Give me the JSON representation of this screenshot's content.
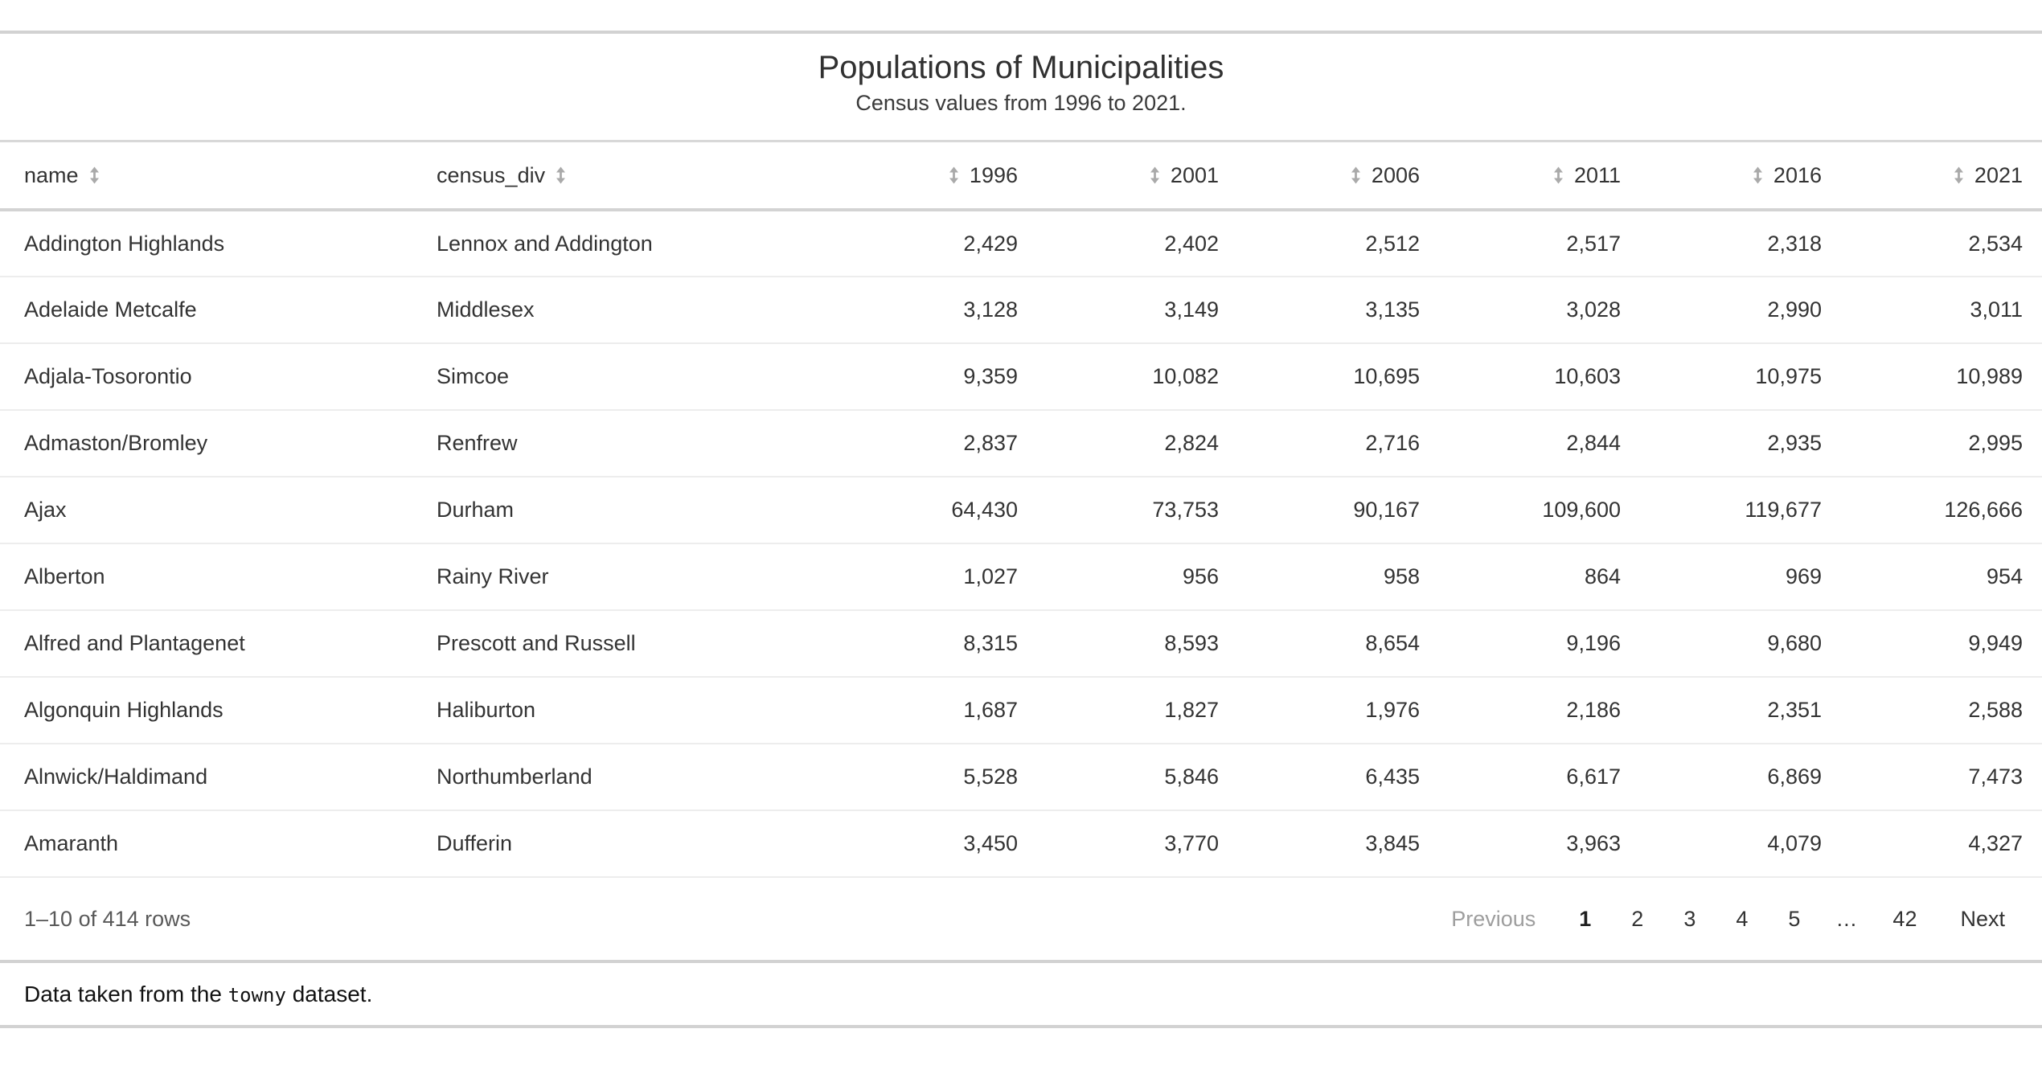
{
  "header": {
    "title": "Populations of Municipalities",
    "subtitle": "Census values from 1996 to 2021."
  },
  "table": {
    "columns": [
      {
        "key": "name",
        "label": "name",
        "align": "left"
      },
      {
        "key": "census_div",
        "label": "census_div",
        "align": "left"
      },
      {
        "key": "1996",
        "label": "1996",
        "align": "right"
      },
      {
        "key": "2001",
        "label": "2001",
        "align": "right"
      },
      {
        "key": "2006",
        "label": "2006",
        "align": "right"
      },
      {
        "key": "2011",
        "label": "2011",
        "align": "right"
      },
      {
        "key": "2016",
        "label": "2016",
        "align": "right"
      },
      {
        "key": "2021",
        "label": "2021",
        "align": "right"
      }
    ],
    "rows": [
      {
        "name": "Addington Highlands",
        "census_div": "Lennox and Addington",
        "1996": "2,429",
        "2001": "2,402",
        "2006": "2,512",
        "2011": "2,517",
        "2016": "2,318",
        "2021": "2,534"
      },
      {
        "name": "Adelaide Metcalfe",
        "census_div": "Middlesex",
        "1996": "3,128",
        "2001": "3,149",
        "2006": "3,135",
        "2011": "3,028",
        "2016": "2,990",
        "2021": "3,011"
      },
      {
        "name": "Adjala-Tosorontio",
        "census_div": "Simcoe",
        "1996": "9,359",
        "2001": "10,082",
        "2006": "10,695",
        "2011": "10,603",
        "2016": "10,975",
        "2021": "10,989"
      },
      {
        "name": "Admaston/Bromley",
        "census_div": "Renfrew",
        "1996": "2,837",
        "2001": "2,824",
        "2006": "2,716",
        "2011": "2,844",
        "2016": "2,935",
        "2021": "2,995"
      },
      {
        "name": "Ajax",
        "census_div": "Durham",
        "1996": "64,430",
        "2001": "73,753",
        "2006": "90,167",
        "2011": "109,600",
        "2016": "119,677",
        "2021": "126,666"
      },
      {
        "name": "Alberton",
        "census_div": "Rainy River",
        "1996": "1,027",
        "2001": "956",
        "2006": "958",
        "2011": "864",
        "2016": "969",
        "2021": "954"
      },
      {
        "name": "Alfred and Plantagenet",
        "census_div": "Prescott and Russell",
        "1996": "8,315",
        "2001": "8,593",
        "2006": "8,654",
        "2011": "9,196",
        "2016": "9,680",
        "2021": "9,949"
      },
      {
        "name": "Algonquin Highlands",
        "census_div": "Haliburton",
        "1996": "1,687",
        "2001": "1,827",
        "2006": "1,976",
        "2011": "2,186",
        "2016": "2,351",
        "2021": "2,588"
      },
      {
        "name": "Alnwick/Haldimand",
        "census_div": "Northumberland",
        "1996": "5,528",
        "2001": "5,846",
        "2006": "6,435",
        "2011": "6,617",
        "2016": "6,869",
        "2021": "7,473"
      },
      {
        "name": "Amaranth",
        "census_div": "Dufferin",
        "1996": "3,450",
        "2001": "3,770",
        "2006": "3,845",
        "2011": "3,963",
        "2016": "4,079",
        "2021": "4,327"
      }
    ]
  },
  "pagination": {
    "info": "1–10 of 414 rows",
    "previous": "Previous",
    "pages": [
      "1",
      "2",
      "3",
      "4",
      "5",
      "…",
      "42"
    ],
    "current": "1",
    "ellipsis": "…",
    "next": "Next"
  },
  "source_note": {
    "prefix": "Data taken from the ",
    "code": "towny",
    "suffix": " dataset."
  },
  "colors": {
    "rule": "#d2d2d2",
    "header_rule": "#d3d3d3",
    "row_divider": "#ededed",
    "sort_icon": "#aaaaaa",
    "muted_text": "#595959",
    "disabled_text": "#9e9e9e",
    "body_text": "#333333"
  }
}
